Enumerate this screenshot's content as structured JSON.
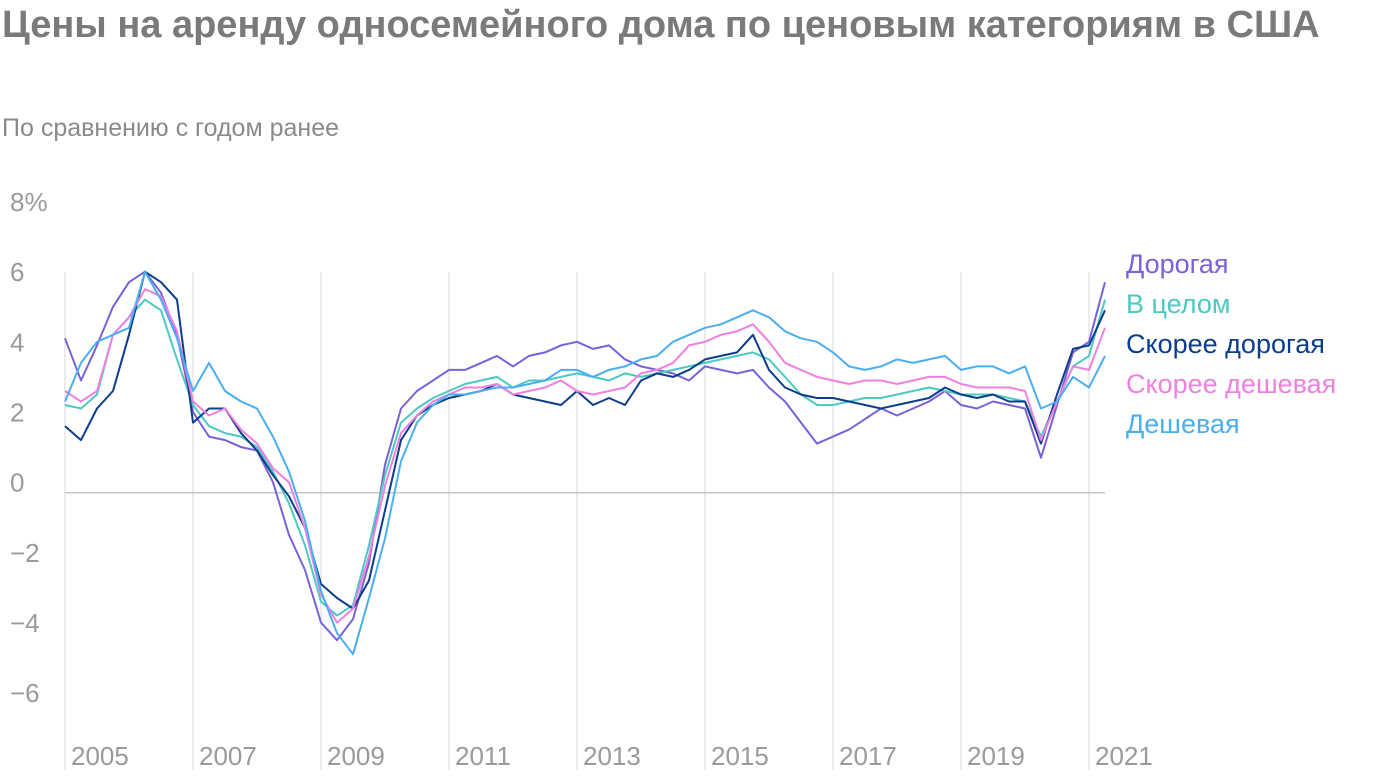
{
  "chart_data": {
    "type": "line",
    "title": "Цены на аренду односемейного дома по ценовым категориям в США",
    "subtitle": "По сравнению с годом ранее",
    "x": [
      2005,
      2005.25,
      2005.5,
      2005.75,
      2006,
      2006.25,
      2006.5,
      2006.75,
      2007,
      2007.25,
      2007.5,
      2007.75,
      2008,
      2008.25,
      2008.5,
      2008.75,
      2009,
      2009.25,
      2009.5,
      2009.75,
      2010,
      2010.25,
      2010.5,
      2010.75,
      2011,
      2011.25,
      2011.5,
      2011.75,
      2012,
      2012.25,
      2012.5,
      2012.75,
      2013,
      2013.25,
      2013.5,
      2013.75,
      2014,
      2014.25,
      2014.5,
      2014.75,
      2015,
      2015.25,
      2015.5,
      2015.75,
      2016,
      2016.25,
      2016.5,
      2016.75,
      2017,
      2017.25,
      2017.5,
      2017.75,
      2018,
      2018.25,
      2018.5,
      2018.75,
      2019,
      2019.25,
      2019.5,
      2019.75,
      2020,
      2020.25,
      2020.5,
      2020.75,
      2021,
      2021.25
    ],
    "series": [
      {
        "name": "Дорогая",
        "color": "#7b61d9",
        "values": [
          4.4,
          3.2,
          4.2,
          5.3,
          6.0,
          6.3,
          5.7,
          4.5,
          2.3,
          1.6,
          1.5,
          1.3,
          1.2,
          0.3,
          -1.2,
          -2.2,
          -3.7,
          -4.2,
          -3.6,
          -2.0,
          0.8,
          2.4,
          2.9,
          3.2,
          3.5,
          3.5,
          3.7,
          3.9,
          3.6,
          3.9,
          4.0,
          4.2,
          4.3,
          4.1,
          4.2,
          3.8,
          3.6,
          3.5,
          3.4,
          3.2,
          3.6,
          3.5,
          3.4,
          3.5,
          3.0,
          2.6,
          2.0,
          1.4,
          1.6,
          1.8,
          2.1,
          2.4,
          2.2,
          2.4,
          2.6,
          2.9,
          2.5,
          2.4,
          2.6,
          2.5,
          2.4,
          1.0,
          2.5,
          4.0,
          4.3,
          6.0
        ]
      },
      {
        "name": "В целом",
        "color": "#4cc9c0",
        "values": [
          2.5,
          2.4,
          2.8,
          4.5,
          5.0,
          5.5,
          5.2,
          3.8,
          2.5,
          1.9,
          1.7,
          1.6,
          1.3,
          0.6,
          -0.3,
          -1.5,
          -3.1,
          -3.5,
          -3.2,
          -1.5,
          0.5,
          2.0,
          2.4,
          2.7,
          2.9,
          3.1,
          3.2,
          3.3,
          3.0,
          3.2,
          3.2,
          3.3,
          3.4,
          3.3,
          3.2,
          3.4,
          3.3,
          3.4,
          3.5,
          3.6,
          3.7,
          3.8,
          3.9,
          4.0,
          3.8,
          3.3,
          2.8,
          2.5,
          2.5,
          2.6,
          2.7,
          2.7,
          2.8,
          2.9,
          3.0,
          2.9,
          2.8,
          2.8,
          2.8,
          2.7,
          2.6,
          1.6,
          2.6,
          3.6,
          3.9,
          5.5
        ]
      },
      {
        "name": "Скорее дорогая",
        "color": "#0b3d8c",
        "values": [
          1.9,
          1.5,
          2.4,
          2.9,
          4.5,
          6.3,
          6.0,
          5.5,
          2.0,
          2.4,
          2.4,
          1.7,
          1.2,
          0.5,
          -0.1,
          -1.0,
          -2.6,
          -3.0,
          -3.3,
          -2.5,
          -0.5,
          1.5,
          2.2,
          2.5,
          2.7,
          2.8,
          2.9,
          3.1,
          2.8,
          2.7,
          2.6,
          2.5,
          2.9,
          2.5,
          2.7,
          2.5,
          3.2,
          3.4,
          3.3,
          3.5,
          3.8,
          3.9,
          4.0,
          4.5,
          3.5,
          3.0,
          2.8,
          2.7,
          2.7,
          2.6,
          2.5,
          2.4,
          2.5,
          2.6,
          2.7,
          3.0,
          2.8,
          2.7,
          2.8,
          2.6,
          2.6,
          1.4,
          2.8,
          4.1,
          4.2,
          5.2
        ]
      },
      {
        "name": "Скорее дешевая",
        "color": "#f080e0",
        "values": [
          2.9,
          2.6,
          2.9,
          4.5,
          5.0,
          5.8,
          5.6,
          4.6,
          2.6,
          2.2,
          2.4,
          1.8,
          1.4,
          0.7,
          0.3,
          -1.0,
          -2.9,
          -3.7,
          -3.3,
          -1.8,
          0.2,
          1.7,
          2.2,
          2.6,
          2.8,
          3.0,
          3.0,
          3.1,
          2.8,
          2.9,
          3.0,
          3.2,
          2.9,
          2.8,
          2.9,
          3.0,
          3.4,
          3.5,
          3.7,
          4.2,
          4.3,
          4.5,
          4.6,
          4.8,
          4.3,
          3.7,
          3.5,
          3.3,
          3.2,
          3.1,
          3.2,
          3.2,
          3.1,
          3.2,
          3.3,
          3.3,
          3.1,
          3.0,
          3.0,
          3.0,
          2.9,
          1.5,
          2.6,
          3.6,
          3.5,
          4.7
        ]
      },
      {
        "name": "Дешевая",
        "color": "#4aaef0",
        "values": [
          2.6,
          3.7,
          4.3,
          4.5,
          4.7,
          6.3,
          5.5,
          4.4,
          2.9,
          3.7,
          2.9,
          2.6,
          2.4,
          1.6,
          0.6,
          -0.8,
          -2.8,
          -4.0,
          -4.6,
          -3.0,
          -1.3,
          0.9,
          2.0,
          2.5,
          2.8,
          2.8,
          2.9,
          3.0,
          3.0,
          3.1,
          3.2,
          3.5,
          3.5,
          3.3,
          3.5,
          3.6,
          3.8,
          3.9,
          4.3,
          4.5,
          4.7,
          4.8,
          5.0,
          5.2,
          5.0,
          4.6,
          4.4,
          4.3,
          4.0,
          3.6,
          3.5,
          3.6,
          3.8,
          3.7,
          3.8,
          3.9,
          3.5,
          3.6,
          3.6,
          3.4,
          3.6,
          2.4,
          2.6,
          3.3,
          3.0,
          3.9
        ]
      }
    ],
    "xlim": [
      2005,
      2021.25
    ],
    "xticks": [
      2005,
      2007,
      2009,
      2011,
      2013,
      2015,
      2017,
      2019,
      2021
    ],
    "ylim": [
      -7.9,
      8
    ],
    "yticks": [
      {
        "value": -6,
        "label": "−6"
      },
      {
        "value": -4,
        "label": "−4"
      },
      {
        "value": -2,
        "label": "−2"
      },
      0,
      2,
      4,
      6,
      {
        "value": 8,
        "label": "8%"
      }
    ]
  }
}
